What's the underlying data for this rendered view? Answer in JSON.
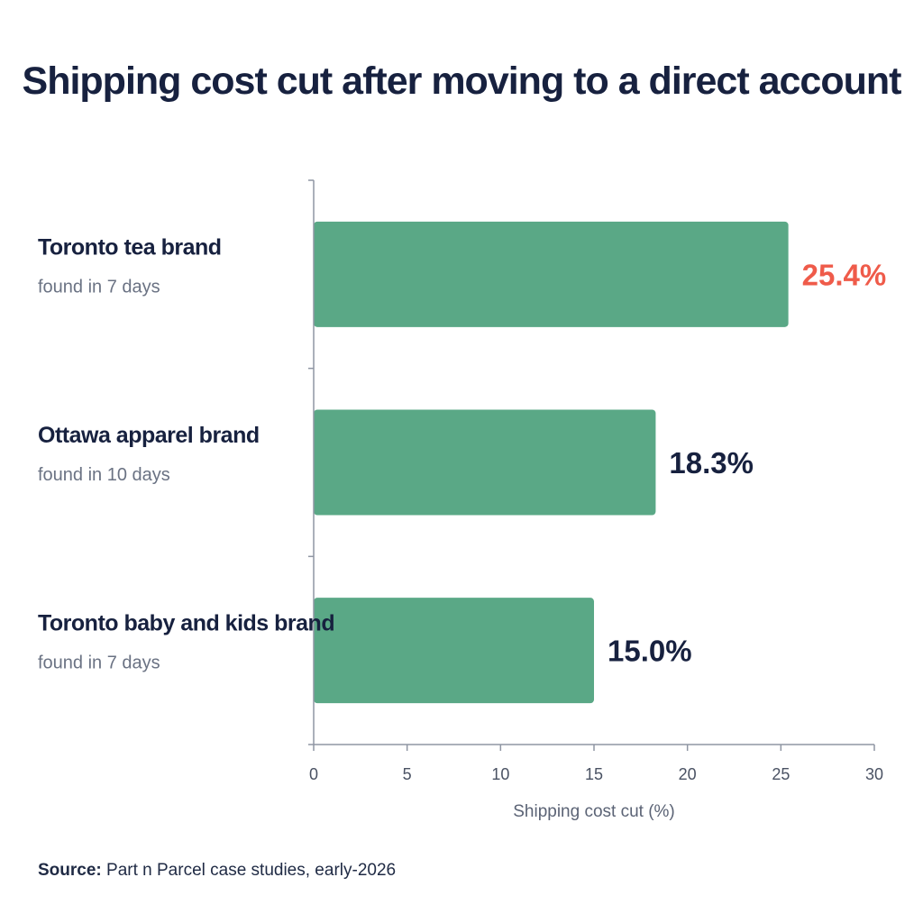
{
  "title": "Shipping cost cut after moving to a direct account",
  "source": {
    "label": "Source:",
    "text": "Part n Parcel case studies, early-2026"
  },
  "colors": {
    "bar": "#5aa886",
    "highlight_label": "#ef5b4a",
    "label": "#17213f",
    "sublabel": "#6a7283",
    "axis": "#8f96a3"
  },
  "chart_data": {
    "type": "bar",
    "orientation": "horizontal",
    "categories": [
      "Toronto tea brand",
      "Ottawa apparel brand",
      "Toronto baby and kids brand"
    ],
    "subtitles": [
      "found in 7 days",
      "found in 10 days",
      "found in 7 days"
    ],
    "values": [
      25.4,
      18.3,
      15.0
    ],
    "value_labels": [
      "25.4%",
      "18.3%",
      "15.0%"
    ],
    "highlight_index": 0,
    "xlabel": "Shipping cost cut (%)",
    "ylabel": "",
    "xlim": [
      0,
      30
    ],
    "xticks": [
      0,
      5,
      10,
      15,
      20,
      25,
      30
    ],
    "grid": false
  }
}
